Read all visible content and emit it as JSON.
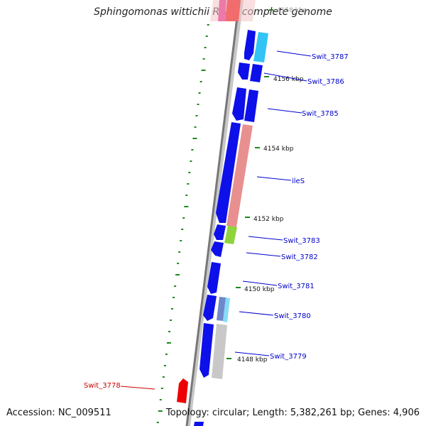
{
  "title": "Sphingomonas wittichii RW1, complete genome",
  "footer": {
    "accession": "Accession: NC_009511",
    "summary": "Topology: circular; Length: 5,382,261 bp; Genes: 4,906"
  },
  "colors": {
    "cds": "#0d10e8",
    "trna": "#e89090",
    "rrna_light": "#f4a0a0",
    "green": "#8ed43b",
    "cyan": "#33c4f5",
    "steel": "#6f88c9",
    "grey": "#c8c8c8",
    "red": "#ee0000",
    "magenta": "#e0208a",
    "axis": "#777777",
    "tick": "#1d8a1d",
    "label": "#0000cc",
    "label_red": "#cc0000"
  },
  "scale_ticks": [
    "4158 kbp",
    "4156 kbp",
    "4154 kbp",
    "4152 kbp",
    "4150 kbp",
    "4148 kbp"
  ],
  "gene_labels": [
    {
      "name": "Swit_3787",
      "color": "label"
    },
    {
      "name": "Swit_3786",
      "color": "label"
    },
    {
      "name": "Swit_3785",
      "color": "label"
    },
    {
      "name": "ileS",
      "color": "label"
    },
    {
      "name": "Swit_3783",
      "color": "label"
    },
    {
      "name": "Swit_3782",
      "color": "label"
    },
    {
      "name": "Swit_3781",
      "color": "label"
    },
    {
      "name": "Swit_3780",
      "color": "label"
    },
    {
      "name": "Swit_3779",
      "color": "label"
    },
    {
      "name": "Swit_3778",
      "color": "label_red"
    }
  ]
}
